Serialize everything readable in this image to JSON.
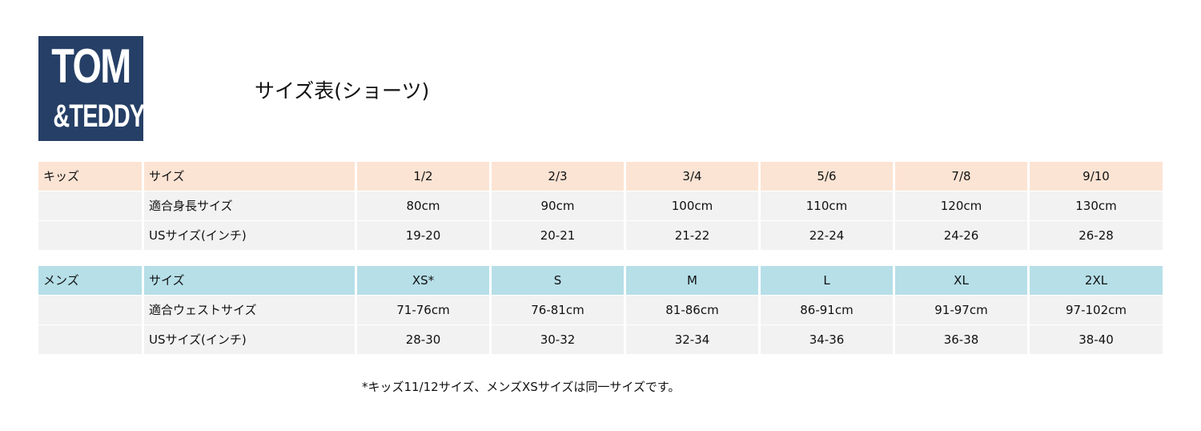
{
  "logo": {
    "line1": "TOM",
    "line2": "&TEDDY",
    "color": "#263f66"
  },
  "title": "サイズ表(ショーツ)",
  "kids": {
    "group": "キッズ",
    "color": "#fce4d4",
    "header": {
      "label": "サイズ",
      "values": [
        "1/2",
        "2/3",
        "3/4",
        "5/6",
        "7/8",
        "9/10"
      ]
    },
    "rows": [
      {
        "label": "適合身長サイズ",
        "values": [
          "80cm",
          "90cm",
          "100cm",
          "110cm",
          "120cm",
          "130cm"
        ]
      },
      {
        "label": "USサイズ(インチ)",
        "values": [
          "19-20",
          "20-21",
          "21-22",
          "22-24",
          "24-26",
          "26-28"
        ]
      }
    ]
  },
  "men": {
    "group": "メンズ",
    "color": "#b6dfe8",
    "header": {
      "label": "サイズ",
      "values": [
        "XS*",
        "S",
        "M",
        "L",
        "XL",
        "2XL"
      ]
    },
    "rows": [
      {
        "label": "適合ウェストサイズ",
        "values": [
          "71-76cm",
          "76-81cm",
          "81-86cm",
          "86-91cm",
          "91-97cm",
          "97-102cm"
        ]
      },
      {
        "label": "USサイズ(インチ)",
        "values": [
          "28-30",
          "30-32",
          "32-34",
          "34-36",
          "36-38",
          "38-40"
        ]
      }
    ]
  },
  "footnote": "*キッズ11/12サイズ、メンズXSサイズは同一サイズです。"
}
